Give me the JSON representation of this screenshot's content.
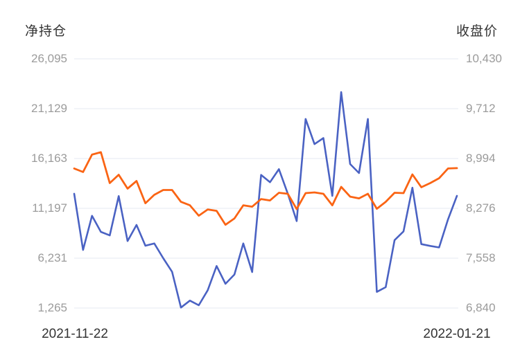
{
  "left_axis": {
    "title": "净持仓",
    "ticks": [
      "26,095",
      "21,129",
      "16,163",
      "11,197",
      "6,231",
      "1,265"
    ],
    "min": 1265,
    "max": 26095
  },
  "right_axis": {
    "title": "收盘价",
    "ticks": [
      "10,430",
      "9,712",
      "8,994",
      "8,276",
      "7,558",
      "6,840"
    ],
    "min": 6840,
    "max": 10430
  },
  "x_axis": {
    "start_label": "2021-11-22",
    "end_label": "2022-01-21"
  },
  "colors": {
    "net_position_line": "#4a62c3",
    "close_price_line": "#fa6414",
    "grid_line": "#e4eaf2",
    "tick_text": "#9b9b9b",
    "title_text": "#333333",
    "background": "#ffffff"
  },
  "chart_data": {
    "type": "line",
    "x_range": [
      "2021-11-22",
      "2022-01-21"
    ],
    "grid": true,
    "legend": false,
    "left_ylim": [
      1265,
      26095
    ],
    "right_ylim": [
      6840,
      10430
    ],
    "series": [
      {
        "name": "净持仓",
        "axis": "left",
        "color": "#4a62c3",
        "values": [
          12650,
          7050,
          10450,
          8850,
          8500,
          12420,
          7940,
          9540,
          7475,
          7700,
          6230,
          4875,
          1315,
          2000,
          1540,
          3040,
          5450,
          3680,
          4600,
          7700,
          4850,
          14530,
          13800,
          15100,
          12650,
          9930,
          20100,
          17600,
          18200,
          12440,
          22780,
          15610,
          14715,
          20100,
          2875,
          3340,
          8030,
          8900,
          13250,
          7630,
          7450,
          7300,
          10100,
          12440
        ]
      },
      {
        "name": "收盘价",
        "axis": "right",
        "color": "#fa6414",
        "values": [
          8850,
          8800,
          9050,
          9085,
          8640,
          8760,
          8560,
          8670,
          8350,
          8470,
          8540,
          8540,
          8370,
          8320,
          8170,
          8260,
          8240,
          8040,
          8130,
          8320,
          8300,
          8410,
          8390,
          8500,
          8485,
          8265,
          8495,
          8505,
          8485,
          8320,
          8585,
          8445,
          8420,
          8485,
          8270,
          8370,
          8500,
          8495,
          8765,
          8580,
          8640,
          8710,
          8850,
          8855
        ]
      }
    ]
  }
}
